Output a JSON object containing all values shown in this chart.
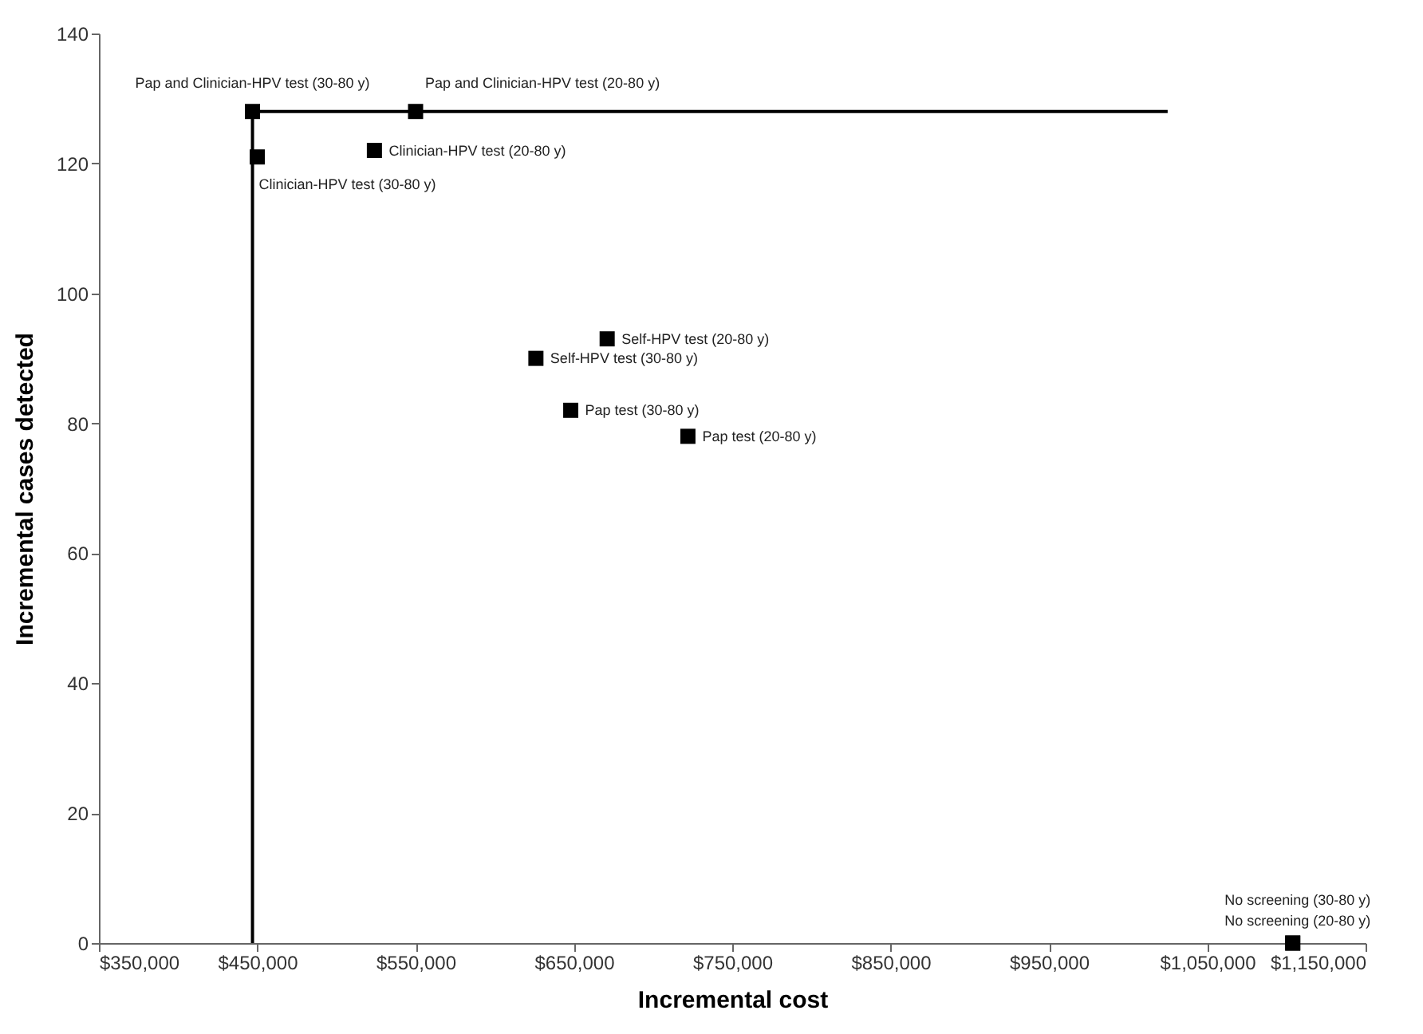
{
  "chart_data": {
    "type": "scatter",
    "xlabel": "Incremental cost",
    "ylabel": "Incremental cases detected",
    "series": [
      {
        "type": "line",
        "marker": "none",
        "color": "#000000",
        "x": [
          447000,
          447000,
          1025000
        ],
        "values": [
          0,
          128,
          128
        ]
      },
      {
        "color": "#000000",
        "x": [
          447000,
          550000,
          450000,
          524000,
          671000,
          626000,
          648000,
          722000,
          1104000,
          1104000
        ],
        "values": [
          128,
          128,
          121,
          122,
          93,
          90,
          82,
          78,
          0,
          0
        ]
      }
    ],
    "annotations": [
      {
        "text": "Pap and Clinician-HPV test  (30-80 y)",
        "x": 447000,
        "y": 128
      },
      {
        "text": "Pap and Clinician-HPV test  (20-80 y)",
        "x": 550000,
        "y": 128
      },
      {
        "text": "Clinician-HPV test (30-80 y)",
        "x": 450000,
        "y": 121
      },
      {
        "text": "Clinician-HPV test (20-80 y)",
        "x": 524000,
        "y": 122
      },
      {
        "text": "Self-HPV test (20-80 y)",
        "x": 671000,
        "y": 93
      },
      {
        "text": "Self-HPV test (30-80 y)",
        "x": 626000,
        "y": 90
      },
      {
        "text": "Pap test (30-80 y)",
        "x": 648000,
        "y": 82
      },
      {
        "text": "Pap test (20-80 y)",
        "x": 722000,
        "y": 78
      },
      {
        "text": "No screening (30-80 y)",
        "x": 1104000,
        "y": 0
      },
      {
        "text": "No screening (20-80 y)",
        "x": 1104000,
        "y": 0
      }
    ],
    "xlim": [
      350000,
      1150000
    ],
    "xticks": [
      {
        "value": 350000,
        "label": "$350,000"
      },
      {
        "value": 450000,
        "label": "$450,000"
      },
      {
        "value": 550000,
        "label": "$550,000"
      },
      {
        "value": 650000,
        "label": "$650,000"
      },
      {
        "value": 750000,
        "label": "$750,000"
      },
      {
        "value": 850000,
        "label": "$850,000"
      },
      {
        "value": 950000,
        "label": "$950,000"
      },
      {
        "value": 1050000,
        "label": "$1,050,000"
      },
      {
        "value": 1150000,
        "label": "$1,150,000"
      }
    ],
    "ylim": [
      0,
      140
    ],
    "yticks": [
      0,
      20,
      40,
      60,
      80,
      100,
      120,
      140
    ],
    "marker": "square"
  }
}
